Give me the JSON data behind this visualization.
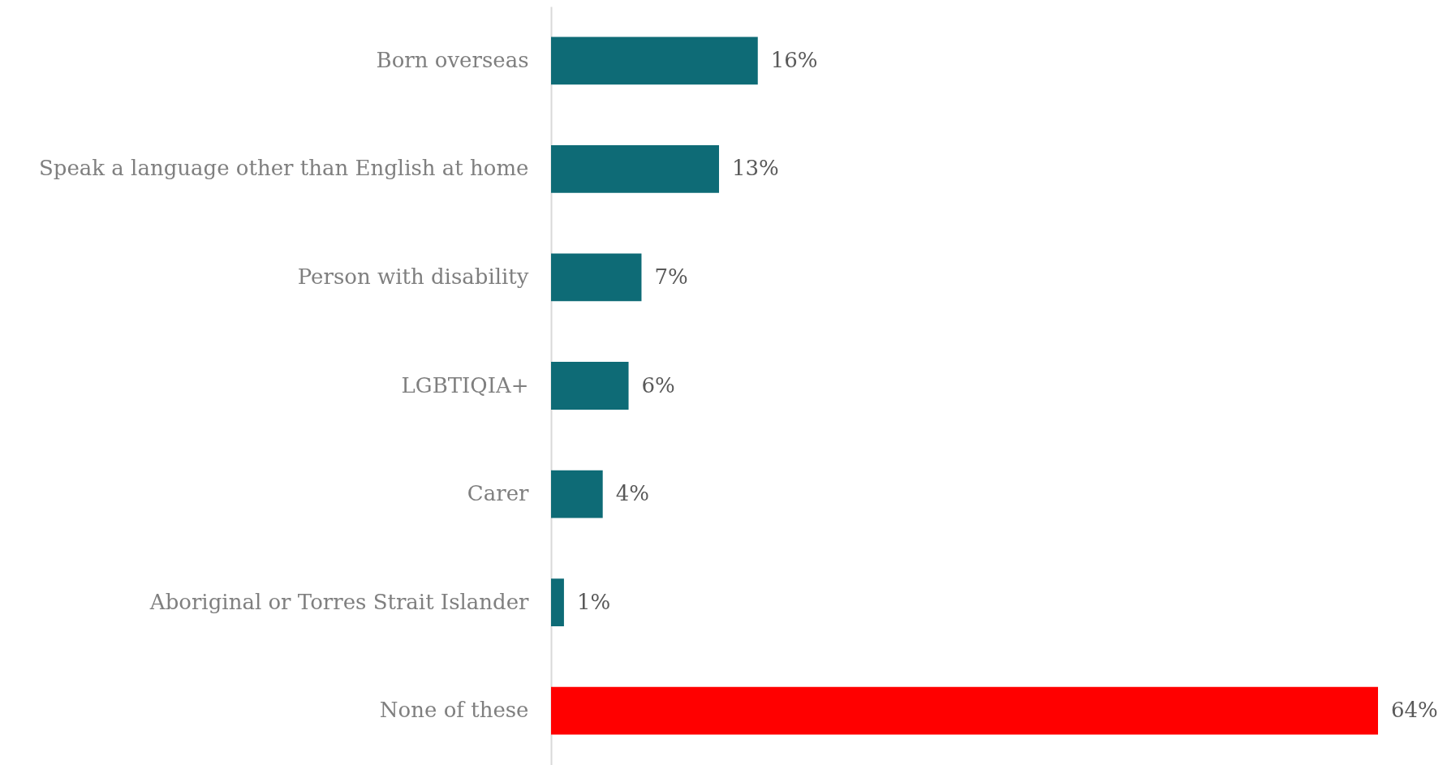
{
  "chart_data": {
    "type": "bar",
    "orientation": "horizontal",
    "tick_labels": "y",
    "categories": [
      "Born overseas",
      "Speak a language other than English at home",
      "Person with disability",
      "LGBTIQIA+",
      "Carer",
      "Aboriginal or Torres Strait Islander",
      "None of these"
    ],
    "values": [
      16,
      13,
      7,
      6,
      4,
      1,
      64
    ],
    "value_labels": [
      "16%",
      "13%",
      "7%",
      "6%",
      "4%",
      "1%",
      "64%"
    ],
    "colors": [
      "#0e6b76",
      "#0e6b76",
      "#0e6b76",
      "#0e6b76",
      "#0e6b76",
      "#0e6b76",
      "#ff0000"
    ]
  }
}
